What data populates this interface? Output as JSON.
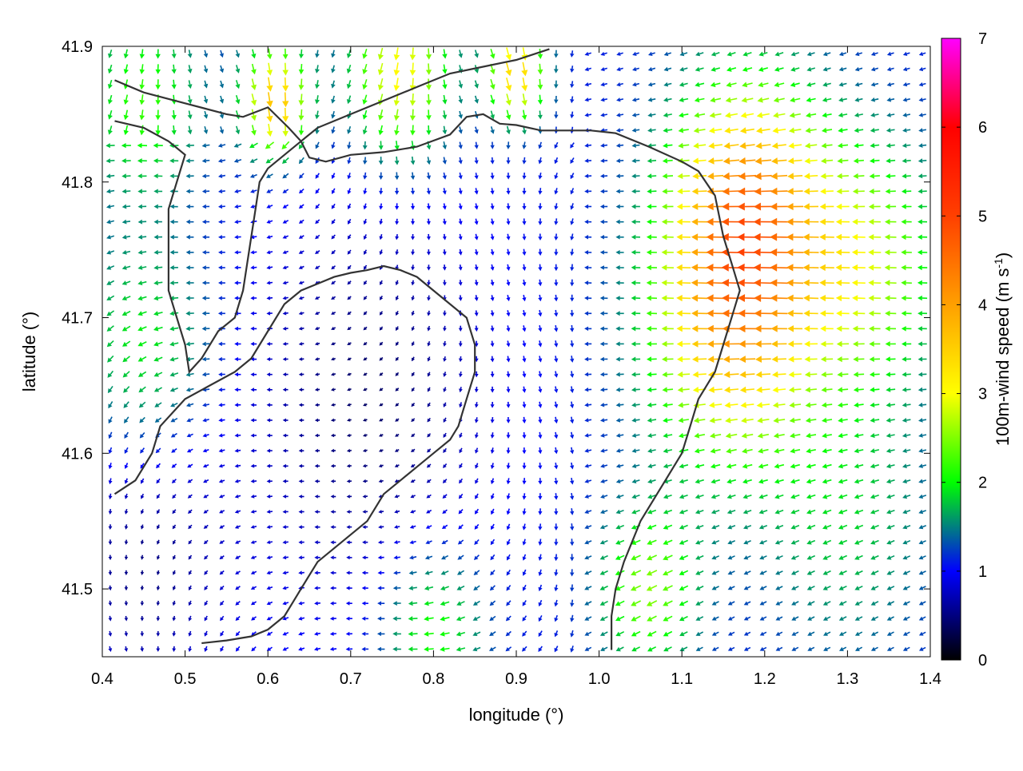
{
  "chart_data": {
    "type": "vector-field",
    "title": "",
    "xlabel": "longitude (°)",
    "ylabel": "latitude (°)",
    "xlim": [
      0.4,
      1.4
    ],
    "ylim": [
      41.45,
      41.9
    ],
    "xticks": [
      "0.4",
      "0.5",
      "0.6",
      "0.7",
      "0.8",
      "0.9",
      "1.0",
      "1.1",
      "1.2",
      "1.3",
      "1.4"
    ],
    "yticks": [
      "41.5",
      "41.6",
      "41.7",
      "41.8",
      "41.9"
    ],
    "colorbar": {
      "label": "100m-wind speed (m s",
      "label_sup": "-1",
      "label_end": ")",
      "range": [
        0,
        7
      ],
      "ticks": [
        "0",
        "1",
        "2",
        "3",
        "4",
        "5",
        "6",
        "7"
      ],
      "palette": [
        "#000000",
        "#0000ff",
        "#00ff00",
        "#ffff00",
        "#ff8c00",
        "#ff0000",
        "#ff00ff"
      ]
    },
    "grid": false,
    "legend": "colorbar-right",
    "wind_regions_note": "",
    "coastlines": [
      [
        [
          0.415,
          41.875
        ],
        [
          0.45,
          41.866
        ],
        [
          0.5,
          41.858
        ],
        [
          0.55,
          41.85
        ],
        [
          0.57,
          41.848
        ],
        [
          0.6,
          41.855
        ],
        [
          0.625,
          41.84
        ],
        [
          0.64,
          41.83
        ],
        [
          0.65,
          41.818
        ],
        [
          0.67,
          41.815
        ],
        [
          0.7,
          41.82
        ],
        [
          0.74,
          41.822
        ],
        [
          0.78,
          41.826
        ],
        [
          0.82,
          41.835
        ],
        [
          0.84,
          41.848
        ],
        [
          0.86,
          41.85
        ],
        [
          0.88,
          41.843
        ],
        [
          0.9,
          41.842
        ],
        [
          0.93,
          41.838
        ],
        [
          0.96,
          41.838
        ],
        [
          0.99,
          41.838
        ],
        [
          1.02,
          41.836
        ],
        [
          1.06,
          41.826
        ],
        [
          1.1,
          41.815
        ],
        [
          1.12,
          41.808
        ],
        [
          1.14,
          41.79
        ],
        [
          1.15,
          41.76
        ],
        [
          1.16,
          41.74
        ],
        [
          1.17,
          41.72
        ],
        [
          1.16,
          41.7
        ],
        [
          1.15,
          41.68
        ],
        [
          1.14,
          41.66
        ],
        [
          1.12,
          41.64
        ],
        [
          1.11,
          41.62
        ],
        [
          1.1,
          41.6
        ],
        [
          1.08,
          41.58
        ],
        [
          1.05,
          41.55
        ],
        [
          1.03,
          41.52
        ],
        [
          1.02,
          41.5
        ],
        [
          1.015,
          41.48
        ],
        [
          1.015,
          41.455
        ]
      ],
      [
        [
          0.415,
          41.845
        ],
        [
          0.45,
          41.84
        ],
        [
          0.48,
          41.83
        ],
        [
          0.5,
          41.82
        ],
        [
          0.49,
          41.8
        ],
        [
          0.48,
          41.78
        ],
        [
          0.48,
          41.76
        ],
        [
          0.48,
          41.74
        ],
        [
          0.48,
          41.72
        ],
        [
          0.49,
          41.7
        ],
        [
          0.5,
          41.68
        ],
        [
          0.505,
          41.66
        ],
        [
          0.52,
          41.67
        ],
        [
          0.54,
          41.69
        ],
        [
          0.56,
          41.7
        ],
        [
          0.57,
          41.72
        ],
        [
          0.575,
          41.74
        ],
        [
          0.58,
          41.76
        ],
        [
          0.585,
          41.78
        ],
        [
          0.59,
          41.8
        ],
        [
          0.6,
          41.81
        ],
        [
          0.62,
          41.82
        ],
        [
          0.64,
          41.83
        ],
        [
          0.66,
          41.84
        ],
        [
          0.7,
          41.85
        ],
        [
          0.74,
          41.86
        ],
        [
          0.78,
          41.87
        ],
        [
          0.82,
          41.88
        ],
        [
          0.86,
          41.885
        ],
        [
          0.9,
          41.89
        ],
        [
          0.94,
          41.898
        ]
      ],
      [
        [
          0.415,
          41.57
        ],
        [
          0.44,
          41.58
        ],
        [
          0.46,
          41.6
        ],
        [
          0.47,
          41.62
        ],
        [
          0.5,
          41.64
        ],
        [
          0.53,
          41.65
        ],
        [
          0.56,
          41.66
        ],
        [
          0.58,
          41.67
        ],
        [
          0.6,
          41.69
        ],
        [
          0.62,
          41.71
        ],
        [
          0.64,
          41.72
        ],
        [
          0.66,
          41.725
        ],
        [
          0.68,
          41.73
        ],
        [
          0.7,
          41.733
        ],
        [
          0.72,
          41.735
        ],
        [
          0.74,
          41.738
        ],
        [
          0.76,
          41.735
        ],
        [
          0.78,
          41.73
        ],
        [
          0.8,
          41.72
        ],
        [
          0.82,
          41.71
        ],
        [
          0.84,
          41.7
        ],
        [
          0.85,
          41.68
        ],
        [
          0.85,
          41.66
        ],
        [
          0.84,
          41.64
        ],
        [
          0.83,
          41.62
        ],
        [
          0.82,
          41.61
        ],
        [
          0.8,
          41.6
        ],
        [
          0.78,
          41.59
        ],
        [
          0.76,
          41.58
        ],
        [
          0.74,
          41.57
        ],
        [
          0.73,
          41.56
        ],
        [
          0.72,
          41.55
        ],
        [
          0.7,
          41.54
        ],
        [
          0.68,
          41.53
        ],
        [
          0.66,
          41.52
        ],
        [
          0.65,
          41.51
        ],
        [
          0.64,
          41.5
        ],
        [
          0.63,
          41.49
        ],
        [
          0.62,
          41.48
        ],
        [
          0.6,
          41.47
        ],
        [
          0.58,
          41.465
        ],
        [
          0.55,
          41.462
        ],
        [
          0.52,
          41.46
        ]
      ]
    ]
  }
}
